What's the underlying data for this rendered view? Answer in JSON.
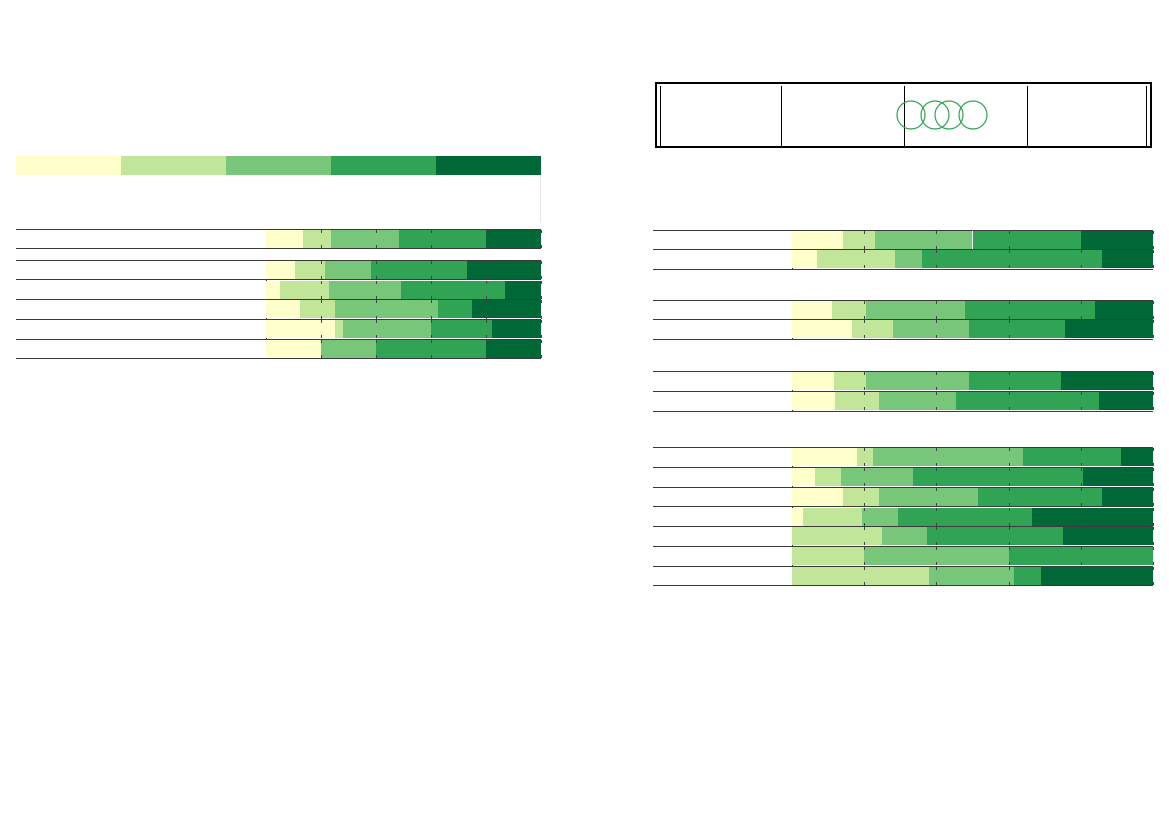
{
  "palette": [
    "#ffffcc",
    "#c2e699",
    "#78c679",
    "#31a354",
    "#006837"
  ],
  "logo": {
    "icon": "four-interlocking-rings-icon",
    "color": "#31a354"
  },
  "chart_data": [
    {
      "type": "bar",
      "orientation": "horizontal",
      "stacked": true,
      "normalized": true,
      "title": "",
      "category_labels_visible": false,
      "legend": {
        "placement": "top",
        "entries": []
      },
      "xlim": [
        0,
        100
      ],
      "groups": [
        {
          "rows": [
            {
              "values": [
                13.5,
                10,
                25,
                31.5,
                20
              ]
            }
          ]
        },
        {
          "rows": [
            {
              "values": [
                10.5,
                11,
                16.5,
                35,
                27
              ]
            },
            {
              "values": [
                5,
                18,
                26,
                38,
                13
              ]
            },
            {
              "values": [
                12.5,
                12.5,
                37.5,
                12.5,
                25
              ]
            },
            {
              "values": [
                25,
                3,
                32,
                22,
                18
              ]
            },
            {
              "values": [
                20,
                0,
                20,
                40,
                20
              ]
            }
          ]
        }
      ]
    },
    {
      "type": "bar",
      "orientation": "horizontal",
      "stacked": true,
      "normalized": true,
      "title": "",
      "category_labels_visible": false,
      "xlim": [
        0,
        100
      ],
      "groups": [
        {
          "rows": [
            {
              "values": [
                14,
                9,
                27,
                30,
                20
              ]
            },
            {
              "values": [
                7,
                21.5,
                7.5,
                50,
                14
              ]
            }
          ]
        },
        {
          "rows": [
            {
              "values": [
                11,
                9.5,
                27.5,
                36,
                16
              ]
            },
            {
              "values": [
                16.5,
                11.5,
                21,
                26.5,
                24.5
              ]
            }
          ]
        },
        {
          "rows": [
            {
              "values": [
                11.5,
                9,
                28.5,
                25.5,
                25.5
              ]
            },
            {
              "values": [
                12,
                12,
                21.5,
                39.5,
                15
              ]
            }
          ]
        },
        {
          "rows": [
            {
              "values": [
                18,
                4.5,
                41.5,
                27,
                9
              ]
            },
            {
              "values": [
                6.5,
                7,
                20,
                47,
                19.5
              ]
            },
            {
              "values": [
                14,
                10,
                27.5,
                34.5,
                14
              ]
            },
            {
              "values": [
                3,
                16.5,
                10,
                37,
                33.5
              ]
            },
            {
              "values": [
                0,
                25,
                12.5,
                37.5,
                25
              ]
            },
            {
              "values": [
                0,
                20,
                40,
                40,
                0
              ]
            },
            {
              "values": [
                0,
                38,
                23.5,
                7.5,
                31
              ]
            }
          ]
        }
      ]
    }
  ]
}
